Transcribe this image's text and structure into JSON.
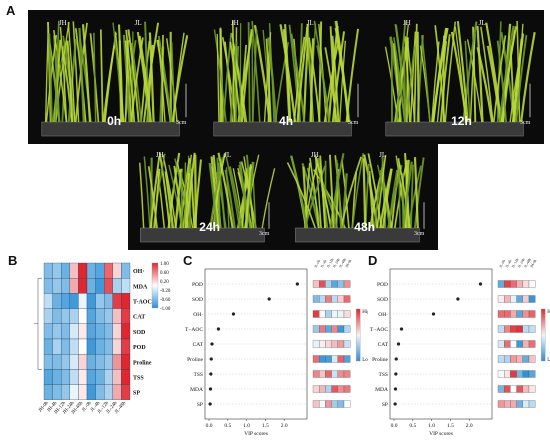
{
  "panels": {
    "A": "A",
    "B": "B",
    "C": "C",
    "D": "D"
  },
  "photos": [
    {
      "time": "0h",
      "left": "JH",
      "right": "JL",
      "scale": "3cm"
    },
    {
      "time": "4h",
      "left": "JH",
      "right": "JL",
      "scale": "3cm"
    },
    {
      "time": "12h",
      "left": "JH",
      "right": "JL",
      "scale": "3cm"
    },
    {
      "time": "24h",
      "left": "JH",
      "right": "JL",
      "scale": "3cm"
    },
    {
      "time": "48h",
      "left": "JH",
      "right": "JL",
      "scale": "3cm"
    }
  ],
  "colors": {
    "low": "#2b8fd6",
    "mid": "#ffffff",
    "high": "#e0262f",
    "leaf": "#b8d83a",
    "leaf_dark": "#6f9a2a"
  },
  "heatmap": {
    "rows": [
      "OH·",
      "MDA",
      "T-AOC",
      "CAT",
      "SOD",
      "POD",
      "Proline",
      "TSS",
      "SP"
    ],
    "cols": [
      "JH-0h",
      "JH-4h",
      "JH-12h",
      "JH-24h",
      "JH-48h",
      "JL-0h",
      "JL-4h",
      "JL-12h",
      "JL-24h",
      "JL-48h"
    ],
    "values": [
      [
        -0.6,
        -0.5,
        -0.7,
        0.3,
        1.0,
        -0.7,
        -0.8,
        0.7,
        0.2,
        -0.6
      ],
      [
        -0.6,
        -0.5,
        -0.6,
        0.4,
        1.0,
        -0.7,
        -0.9,
        0.8,
        -0.4,
        -0.3
      ],
      [
        -0.3,
        -0.7,
        -0.8,
        -0.9,
        -0.1,
        -0.9,
        -0.5,
        -0.6,
        0.9,
        1.0
      ],
      [
        -0.4,
        -0.6,
        -0.5,
        -0.4,
        0.0,
        -0.8,
        -0.6,
        -0.5,
        0.3,
        0.9
      ],
      [
        -0.6,
        -0.5,
        -0.6,
        -0.2,
        0.1,
        -0.8,
        -0.7,
        -0.6,
        0.2,
        1.0
      ],
      [
        -0.7,
        -0.4,
        -0.6,
        -0.3,
        0.0,
        -0.9,
        -0.7,
        -0.6,
        0.2,
        0.9
      ],
      [
        -0.6,
        -0.6,
        -0.5,
        -0.2,
        0.2,
        -0.7,
        -0.6,
        -0.5,
        0.5,
        1.0
      ],
      [
        -0.8,
        -0.7,
        -0.6,
        -0.3,
        0.1,
        -0.8,
        -0.7,
        -0.4,
        0.3,
        1.0
      ],
      [
        -0.7,
        -0.6,
        -0.5,
        -0.1,
        0.1,
        -0.9,
        -0.6,
        -0.4,
        0.4,
        0.9
      ]
    ],
    "legend_ticks": [
      "1.00",
      "0.60",
      "0.20",
      "-0.20",
      "-0.60",
      "-1.00"
    ]
  },
  "chart_data": [
    {
      "type": "scatter",
      "panel": "C",
      "categories": [
        "POD",
        "SOD",
        "OH·",
        "T−AOC",
        "CAT",
        "Proline",
        "TSS",
        "MDA",
        "SP"
      ],
      "values": [
        2.35,
        1.6,
        0.65,
        0.25,
        0.08,
        0.06,
        0.05,
        0.04,
        0.03
      ],
      "xlabel": "VIP scores",
      "x_ticks": [
        "0.0",
        "0.5",
        "1.0",
        "1.5",
        "2.0"
      ],
      "xlim": [
        0,
        2.5
      ],
      "legend": {
        "high": "High",
        "low": "Low"
      },
      "mini_cols": [
        "JL-0h",
        "JL-4h",
        "JL-12h",
        "JL-24h",
        "JL-48h",
        "JH-0h"
      ]
    },
    {
      "type": "scatter",
      "panel": "D",
      "categories": [
        "POD",
        "SOD",
        "OH·",
        "T−AOC",
        "CAT",
        "Proline",
        "TSS",
        "MDA",
        "SP"
      ],
      "values": [
        2.3,
        1.7,
        1.05,
        0.2,
        0.12,
        0.06,
        0.05,
        0.04,
        0.03
      ],
      "xlabel": "VIP scores",
      "x_ticks": [
        "0.0",
        "0.5",
        "1.0",
        "1.5",
        "2.0"
      ],
      "xlim": [
        0,
        2.5
      ],
      "legend": {
        "high": "High",
        "low": "Low"
      },
      "mini_cols": [
        "JL-0h",
        "JL-4h",
        "JL-12h",
        "JL-24h",
        "JL-48h",
        "JH-0h"
      ]
    }
  ]
}
